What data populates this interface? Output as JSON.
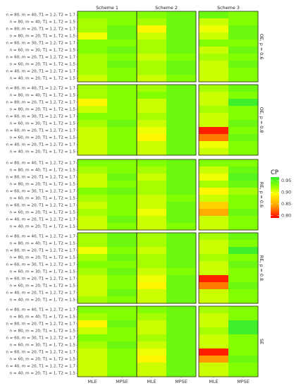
{
  "chart_data": {
    "type": "heatmap",
    "col_facets": [
      "Scheme 1",
      "Scheme 2",
      "Scheme 3"
    ],
    "row_facets": [
      "OE, p = 0.6",
      "OE, p = 0.8",
      "RE, p = 0.6",
      "RE, p = 0.8",
      "SE"
    ],
    "x_categories": [
      "MLE",
      "MPSE"
    ],
    "y_categories": [
      "n = 80, m = 40, T1 = 1.2, T2 = 1.7",
      "n = 80, m = 40, T1 = 1, T2 = 1.5",
      "n = 80, m = 20, T1 = 1.2, T2 = 1.7",
      "n = 80, m = 20, T1 = 1, T2 = 1.5",
      "n = 60, m = 30, T1 = 1.2, T2 = 1.7",
      "n = 60, m = 30, T1 = 1, T2 = 1.5",
      "n = 60, m = 20, T1 = 1.2, T2 = 1.7",
      "n = 60, m = 20, T1 = 1, T2 = 1.5",
      "n = 40, m = 20, T1 = 1.2, T2 = 1.7",
      "n = 40, m = 20, T1 = 1, T2 = 1.5"
    ],
    "legend": {
      "title": "CP",
      "ticks": [
        0.95,
        0.9,
        0.85,
        0.8
      ],
      "range": [
        0.79,
        0.965
      ],
      "colors": [
        "#ff0000",
        "#ff9a00",
        "#ffff00",
        "#66ff00",
        "#33ee33"
      ],
      "placement": "right"
    },
    "values": [
      [
        [
          [
            0.93,
            0.93
          ],
          [
            0.92,
            0.93
          ],
          [
            0.92,
            0.94
          ],
          [
            0.9,
            0.94
          ],
          [
            0.93,
            0.93
          ],
          [
            0.93,
            0.94
          ],
          [
            0.92,
            0.93
          ],
          [
            0.92,
            0.94
          ],
          [
            0.92,
            0.93
          ],
          [
            0.91,
            0.93
          ]
        ],
        [
          [
            0.93,
            0.94
          ],
          [
            0.92,
            0.94
          ],
          [
            0.89,
            0.94
          ],
          [
            0.91,
            0.94
          ],
          [
            0.92,
            0.94
          ],
          [
            0.92,
            0.94
          ],
          [
            0.91,
            0.93
          ],
          [
            0.92,
            0.94
          ],
          [
            0.92,
            0.94
          ],
          [
            0.91,
            0.93
          ]
        ],
        [
          [
            0.94,
            0.93
          ],
          [
            0.91,
            0.93
          ],
          [
            0.9,
            0.94
          ],
          [
            0.91,
            0.94
          ],
          [
            0.93,
            0.93
          ],
          [
            0.91,
            0.94
          ],
          [
            0.92,
            0.93
          ],
          [
            0.91,
            0.94
          ],
          [
            0.91,
            0.93
          ],
          [
            0.91,
            0.93
          ]
        ]
      ],
      [
        [
          [
            0.92,
            0.93
          ],
          [
            0.92,
            0.93
          ],
          [
            0.89,
            0.93
          ],
          [
            0.91,
            0.93
          ],
          [
            0.93,
            0.93
          ],
          [
            0.92,
            0.94
          ],
          [
            0.91,
            0.93
          ],
          [
            0.91,
            0.93
          ],
          [
            0.91,
            0.93
          ],
          [
            0.91,
            0.93
          ]
        ],
        [
          [
            0.92,
            0.94
          ],
          [
            0.93,
            0.94
          ],
          [
            0.91,
            0.94
          ],
          [
            0.91,
            0.94
          ],
          [
            0.92,
            0.94
          ],
          [
            0.91,
            0.94
          ],
          [
            0.9,
            0.94
          ],
          [
            0.89,
            0.94
          ],
          [
            0.91,
            0.94
          ],
          [
            0.91,
            0.94
          ]
        ],
        [
          [
            0.92,
            0.94
          ],
          [
            0.91,
            0.93
          ],
          [
            0.91,
            0.96
          ],
          [
            0.92,
            0.93
          ],
          [
            0.91,
            0.93
          ],
          [
            0.91,
            0.94
          ],
          [
            0.8,
            0.93
          ],
          [
            0.83,
            0.94
          ],
          [
            0.9,
            0.93
          ],
          [
            0.91,
            0.93
          ]
        ]
      ],
      [
        [
          [
            0.93,
            0.93
          ],
          [
            0.92,
            0.93
          ],
          [
            0.91,
            0.94
          ],
          [
            0.91,
            0.93
          ],
          [
            0.93,
            0.94
          ],
          [
            0.92,
            0.93
          ],
          [
            0.91,
            0.93
          ],
          [
            0.92,
            0.93
          ],
          [
            0.91,
            0.94
          ],
          [
            0.91,
            0.93
          ]
        ],
        [
          [
            0.93,
            0.94
          ],
          [
            0.92,
            0.94
          ],
          [
            0.91,
            0.94
          ],
          [
            0.92,
            0.94
          ],
          [
            0.92,
            0.94
          ],
          [
            0.91,
            0.93
          ],
          [
            0.91,
            0.94
          ],
          [
            0.9,
            0.94
          ],
          [
            0.91,
            0.94
          ],
          [
            0.91,
            0.93
          ]
        ],
        [
          [
            0.93,
            0.93
          ],
          [
            0.91,
            0.94
          ],
          [
            0.9,
            0.95
          ],
          [
            0.92,
            0.94
          ],
          [
            0.89,
            0.92
          ],
          [
            0.91,
            0.93
          ],
          [
            0.87,
            0.93
          ],
          [
            0.85,
            0.94
          ],
          [
            0.91,
            0.93
          ],
          [
            0.91,
            0.93
          ]
        ]
      ],
      [
        [
          [
            0.92,
            0.94
          ],
          [
            0.92,
            0.94
          ],
          [
            0.9,
            0.93
          ],
          [
            0.92,
            0.94
          ],
          [
            0.93,
            0.93
          ],
          [
            0.92,
            0.94
          ],
          [
            0.91,
            0.93
          ],
          [
            0.91,
            0.93
          ],
          [
            0.91,
            0.94
          ],
          [
            0.92,
            0.93
          ]
        ],
        [
          [
            0.92,
            0.94
          ],
          [
            0.92,
            0.94
          ],
          [
            0.91,
            0.94
          ],
          [
            0.92,
            0.94
          ],
          [
            0.92,
            0.94
          ],
          [
            0.91,
            0.93
          ],
          [
            0.9,
            0.94
          ],
          [
            0.89,
            0.94
          ],
          [
            0.91,
            0.94
          ],
          [
            0.91,
            0.94
          ]
        ],
        [
          [
            0.92,
            0.94
          ],
          [
            0.91,
            0.93
          ],
          [
            0.91,
            0.96
          ],
          [
            0.92,
            0.93
          ],
          [
            0.91,
            0.94
          ],
          [
            0.91,
            0.93
          ],
          [
            0.8,
            0.93
          ],
          [
            0.83,
            0.94
          ],
          [
            0.91,
            0.93
          ],
          [
            0.91,
            0.93
          ]
        ]
      ],
      [
        [
          [
            0.93,
            0.93
          ],
          [
            0.92,
            0.93
          ],
          [
            0.89,
            0.94
          ],
          [
            0.91,
            0.93
          ],
          [
            0.93,
            0.93
          ],
          [
            0.92,
            0.94
          ],
          [
            0.91,
            0.93
          ],
          [
            0.91,
            0.93
          ],
          [
            0.91,
            0.93
          ],
          [
            0.91,
            0.93
          ]
        ],
        [
          [
            0.93,
            0.94
          ],
          [
            0.92,
            0.94
          ],
          [
            0.91,
            0.94
          ],
          [
            0.91,
            0.94
          ],
          [
            0.92,
            0.94
          ],
          [
            0.91,
            0.94
          ],
          [
            0.9,
            0.94
          ],
          [
            0.89,
            0.94
          ],
          [
            0.91,
            0.94
          ],
          [
            0.91,
            0.94
          ]
        ],
        [
          [
            0.92,
            0.93
          ],
          [
            0.91,
            0.93
          ],
          [
            0.91,
            0.96
          ],
          [
            0.92,
            0.96
          ],
          [
            0.91,
            0.93
          ],
          [
            0.91,
            0.93
          ],
          [
            0.8,
            0.93
          ],
          [
            0.84,
            0.94
          ],
          [
            0.91,
            0.93
          ],
          [
            0.91,
            0.93
          ]
        ]
      ]
    ]
  }
}
